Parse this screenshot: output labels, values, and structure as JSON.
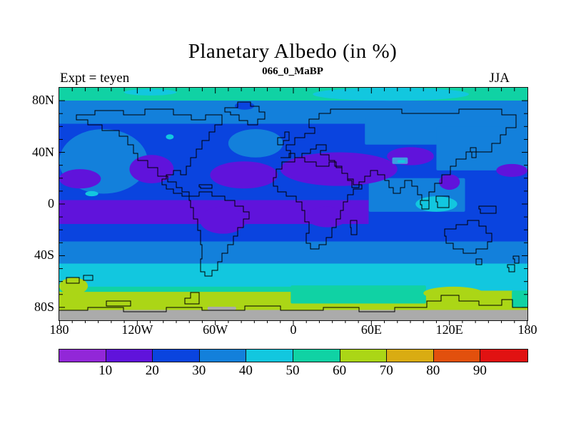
{
  "title": "Planetary Albedo (in %)",
  "subtitle": "066_0_MaBP",
  "annotations": {
    "experiment": "Expt = teyen",
    "season": "JJA"
  },
  "axes": {
    "lat_range": [
      -90,
      90
    ],
    "lon_range": [
      -180,
      180
    ],
    "minor_step_deg": 10,
    "lat_ticks": [
      {
        "label": "80N",
        "lat": 80
      },
      {
        "label": "40N",
        "lat": 40
      },
      {
        "label": "0",
        "lat": 0
      },
      {
        "label": "40S",
        "lat": -40
      },
      {
        "label": "80S",
        "lat": -80
      }
    ],
    "lon_ticks": [
      {
        "label": "180",
        "lon": -180
      },
      {
        "label": "120W",
        "lon": -120
      },
      {
        "label": "60W",
        "lon": -60
      },
      {
        "label": "0",
        "lon": 0
      },
      {
        "label": "60E",
        "lon": 60
      },
      {
        "label": "120E",
        "lon": 120
      },
      {
        "label": "180",
        "lon": 180
      }
    ]
  },
  "colorbar": {
    "boundary_labels": [
      "10",
      "20",
      "30",
      "40",
      "50",
      "60",
      "70",
      "80",
      "90"
    ],
    "segments": [
      {
        "range": "<10",
        "color": "#9227D8"
      },
      {
        "range": "10-20",
        "color": "#6013DB"
      },
      {
        "range": "20-30",
        "color": "#0A44DF"
      },
      {
        "range": "30-40",
        "color": "#1380DB"
      },
      {
        "range": "40-50",
        "color": "#12C7DF"
      },
      {
        "range": "50-60",
        "color": "#10D2A4"
      },
      {
        "range": "60-70",
        "color": "#ABD616"
      },
      {
        "range": "70-80",
        "color": "#D9AC12"
      },
      {
        "range": "80-90",
        "color": "#E2500D"
      },
      {
        "range": ">90",
        "color": "#E11212"
      }
    ]
  },
  "chart_data": {
    "type": "heatmap",
    "description": "Filled contour global map of planetary albedo in percent, 10% contour interval, lat 90N-90S, lon 180W-180E",
    "title": "Planetary Albedo (in %)",
    "subtitle": "066_0_MaBP",
    "experiment": "teyen",
    "season": "JJA",
    "units": "%",
    "contour_interval": 10,
    "levels": [
      10,
      20,
      30,
      40,
      50,
      60,
      70,
      80,
      90
    ],
    "palette": [
      "#9227D8",
      "#6013DB",
      "#0A44DF",
      "#1380DB",
      "#12C7DF",
      "#10D2A4",
      "#ABD616",
      "#D9AC12",
      "#E2500D",
      "#E11212"
    ],
    "ice_gray_color": "#ABABAB",
    "zonal_bands": [
      {
        "name": "arctic-cap",
        "lat_from": 90,
        "lat_to": 80,
        "albedo_pct": 55,
        "color": "#10D2A4"
      },
      {
        "name": "high-north",
        "lat_from": 80,
        "lat_to": 62,
        "albedo_pct": 35,
        "color": "#1380DB"
      },
      {
        "name": "north-midlat",
        "lat_from": 62,
        "lat_to": 3,
        "albedo_pct": 25,
        "color": "#0A44DF"
      },
      {
        "name": "equatorial-low",
        "lat_from": 3,
        "lat_to": -15.5,
        "lon_from": -180,
        "lon_to": 58,
        "albedo_pct": 18,
        "color": "#6013DB"
      },
      {
        "name": "equatorial-east",
        "lat_from": 3,
        "lat_to": -15.5,
        "lon_from": 58,
        "lon_to": 180,
        "albedo_pct": 25,
        "color": "#0A44DF"
      },
      {
        "name": "south-subtropic",
        "lat_from": -15.5,
        "lat_to": -29,
        "albedo_pct": 25,
        "color": "#0A44DF"
      },
      {
        "name": "south-midlat",
        "lat_from": -29,
        "lat_to": -46,
        "albedo_pct": 35,
        "color": "#1380DB"
      },
      {
        "name": "southern-ocean",
        "lat_from": -46,
        "lat_to": -67,
        "albedo_pct": 45,
        "color": "#12C7DF"
      },
      {
        "name": "subantarctic",
        "lat_from": -67,
        "lat_to": -82,
        "albedo_pct": 65,
        "color": "#ABD616"
      },
      {
        "name": "antarctica-ice",
        "lat_from": -82,
        "lat_to": -90,
        "albedo_pct": null,
        "color": "#ABABAB"
      }
    ],
    "features": [
      {
        "name": "arctic-cyan-patch-east",
        "shape": "ellipse",
        "lon_from": 15,
        "lon_to": 135,
        "lat_from": 90,
        "lat_to": 80,
        "albedo_pct": 45,
        "color": "#12C7DF"
      },
      {
        "name": "arctic-cyan-patch-west",
        "shape": "ellipse",
        "lon_from": -130,
        "lon_to": -90,
        "lat_from": 89,
        "lat_to": 84,
        "albedo_pct": 45,
        "color": "#12C7DF"
      },
      {
        "name": "northeast-pacific",
        "shape": "ellipse",
        "lon_from": -180,
        "lon_to": -112,
        "lat_from": 58,
        "lat_to": 8,
        "albedo_pct": 35,
        "color": "#1380DB"
      },
      {
        "name": "north-atlantic",
        "shape": "ellipse",
        "lon_from": -50,
        "lon_to": -8,
        "lat_from": 58,
        "lat_to": 36,
        "albedo_pct": 35,
        "color": "#1380DB"
      },
      {
        "name": "siberia",
        "shape": "rect",
        "lon_from": 55,
        "lon_to": 180,
        "lat_from": 66,
        "lat_to": 46,
        "albedo_pct": 35,
        "color": "#1380DB"
      },
      {
        "name": "northwest-pacific",
        "shape": "rect",
        "lon_from": 110,
        "lon_to": 180,
        "lat_from": 60,
        "lat_to": 26,
        "albedo_pct": 35,
        "color": "#1380DB"
      },
      {
        "name": "indian-ocean-wpac",
        "shape": "rect",
        "lon_from": 58,
        "lon_to": 132,
        "lat_from": 20,
        "lat_to": -6,
        "albedo_pct": 35,
        "color": "#1380DB"
      },
      {
        "name": "warm-pool-cyan",
        "shape": "ellipse",
        "lon_from": 94,
        "lon_to": 126,
        "lat_from": 6,
        "lat_to": -6,
        "albedo_pct": 45,
        "color": "#12C7DF"
      },
      {
        "name": "greenland-interior",
        "shape": "ellipse",
        "lon_from": -45,
        "lon_to": -30,
        "lat_from": 79,
        "lat_to": 73,
        "albedo_pct": 25,
        "color": "#0A44DF"
      },
      {
        "name": "hudson-bay-spot",
        "shape": "ellipse",
        "lon_from": -98,
        "lon_to": -92,
        "lat_from": 54,
        "lat_to": 50,
        "albedo_pct": 45,
        "color": "#12C7DF"
      },
      {
        "name": "mexico-sw-us",
        "shape": "ellipse",
        "lon_from": -126,
        "lon_to": -92,
        "lat_from": 38,
        "lat_to": 16,
        "albedo_pct": 15,
        "color": "#6013DB"
      },
      {
        "name": "central-atlantic",
        "shape": "ellipse",
        "lon_from": -64,
        "lon_to": -12,
        "lat_from": 33,
        "lat_to": 12,
        "albedo_pct": 15,
        "color": "#6013DB"
      },
      {
        "name": "sahara-arabia",
        "shape": "ellipse",
        "lon_from": -10,
        "lon_to": 80,
        "lat_from": 40,
        "lat_to": 14,
        "albedo_pct": 15,
        "color": "#6013DB"
      },
      {
        "name": "central-asia",
        "shape": "ellipse",
        "lon_from": 72,
        "lon_to": 108,
        "lat_from": 44,
        "lat_to": 30,
        "albedo_pct": 15,
        "color": "#6013DB"
      },
      {
        "name": "central-pacific-streak",
        "shape": "ellipse",
        "lon_from": -180,
        "lon_to": -148,
        "lat_from": 27,
        "lat_to": 12,
        "albedo_pct": 15,
        "color": "#6013DB"
      },
      {
        "name": "nw-pacific-subtropic",
        "shape": "ellipse",
        "lon_from": 156,
        "lon_to": 180,
        "lat_from": 31,
        "lat_to": 21,
        "albedo_pct": 15,
        "color": "#6013DB"
      },
      {
        "name": "se-asia-coast",
        "shape": "ellipse",
        "lon_from": 112,
        "lon_to": 128,
        "lat_from": 23,
        "lat_to": 11,
        "albedo_pct": 15,
        "color": "#6013DB"
      },
      {
        "name": "brazil",
        "shape": "ellipse",
        "lon_from": -72,
        "lon_to": -36,
        "lat_from": -2,
        "lat_to": -23,
        "albedo_pct": 15,
        "color": "#6013DB"
      },
      {
        "name": "central-africa",
        "shape": "ellipse",
        "lon_from": 10,
        "lon_to": 42,
        "lat_from": -2,
        "lat_to": -18,
        "albedo_pct": 15,
        "color": "#6013DB"
      },
      {
        "name": "tibet-plateau",
        "shape": "rect",
        "lon_from": 76,
        "lon_to": 88,
        "lat_from": 36,
        "lat_to": 31,
        "albedo_pct": 38,
        "color": "#3E9EE0"
      },
      {
        "name": "tibet-high",
        "shape": "rect",
        "lon_from": 80,
        "lon_to": 86,
        "lat_from": 34,
        "lat_to": 32,
        "albedo_pct": 45,
        "color": "#12C7DF"
      },
      {
        "name": "pacific-equator-spot",
        "shape": "ellipse",
        "lon_from": -160,
        "lon_to": -150,
        "lat_from": 10,
        "lat_to": 6,
        "albedo_pct": 45,
        "color": "#12C7DF"
      },
      {
        "name": "subantarctic-teal-strip",
        "shape": "rect",
        "lon_from": -180,
        "lon_to": 0,
        "lat_from": -64,
        "lat_to": -68,
        "albedo_pct": 55,
        "color": "#10D2A4"
      },
      {
        "name": "antarctic-teal-sector",
        "shape": "rect",
        "lon_from": -2,
        "lon_to": 102,
        "lat_from": -63,
        "lat_to": -77,
        "albedo_pct": 55,
        "color": "#10D2A4"
      },
      {
        "name": "sw-corner-yellowgreen",
        "shape": "ellipse",
        "lon_from": -180,
        "lon_to": -158,
        "lat_from": -57,
        "lat_to": -70,
        "albedo_pct": 65,
        "color": "#ABD616"
      },
      {
        "name": "east-antarctic-yellow",
        "shape": "ellipse",
        "lon_from": 100,
        "lon_to": 146,
        "lat_from": -64,
        "lat_to": -74,
        "albedo_pct": 65,
        "color": "#ABD616"
      },
      {
        "name": "far-se-teal",
        "shape": "rect",
        "lon_from": 168,
        "lon_to": 180,
        "lat_from": -67,
        "lat_to": -80,
        "albedo_pct": 55,
        "color": "#10D2A4"
      },
      {
        "name": "antarctic-ice-bump",
        "shape": "rect",
        "lon_from": -66,
        "lon_to": -44,
        "lat_from": -79.5,
        "lat_to": -82,
        "albedo_pct": null,
        "color": "#ABABAB"
      }
    ],
    "coastlines": [
      "M 24 45 V 38 H 50 V 32 H 90 V 38 H 120 V 30 H 160 V 38 H 185 V 45 H 205 V 38 H 228 V 52 H 218 V 62 H 210 V 74 H 200 V 86 H 192 V 98 H 184 V 110 H 178 V 122 H 170 V 116 H 160 V 122 H 150 V 128 H 144 V 136 H 150 V 142 H 160 V 148 H 172 V 152 H 182 V 146 H 172 V 140 H 164 V 132 H 152 V 124 H 138 V 112 H 124 V 102 H 110 V 92 H 104 V 80 H 96 V 68 H 84 V 60 H 60 V 52 H 40 V 45 Z",
      "M 182 152 H 196 V 146 H 214 V 152 H 232 V 158 H 246 V 166 H 258 V 174 H 266 V 184 H 258 V 196 H 250 V 208 H 244 V 220 H 236 V 232 H 228 V 244 H 222 V 256 H 214 V 264 H 204 V 258 H 198 V 240 H 200 V 220 H 198 V 200 H 194 V 184 H 188 V 168 H 184 V 158 H 182 Z",
      "M 232 28 H 250 V 20 H 268 V 26 H 280 V 34 H 288 V 44 H 278 V 52 H 264 V 46 H 252 V 38 H 240 V 34 H 232 Z",
      "M 306 70 H 316 V 62 H 322 V 74 H 314 V 80 H 306 Z",
      "M 310 98 H 324 V 88 H 318 V 80 H 330 V 70 H 344 V 64 H 358 V 56 H 350 V 44 H 364 V 36 H 380 V 30 H 480 V 36 H 560 V 30 H 620 V 38 H 640 V 56 H 626 V 66 H 618 V 78 H 606 V 90 H 570 V 100 H 556 V 110 H 548 V 122 H 536 V 134 H 526 V 146 H 518 V 158 H 508 V 150 H 502 V 138 H 494 V 130 H 484 V 140 H 478 V 148 H 468 V 140 H 462 V 130 H 456 V 122 H 446 V 116 H 436 V 124 H 428 V 132 H 420 V 140 H 410 V 130 H 404 V 120 H 396 V 110 H 386 V 102 H 378 V 94 H 366 V 88 H 374 V 80 H 360 V 86 H 352 V 92 H 340 V 98 H 330 V 92 H 322 V 98 Z",
      "M 312 104 H 330 V 98 H 344 V 104 H 360 V 110 H 378 V 104 H 388 V 112 H 396 V 120 H 404 V 128 H 412 V 136 H 424 V 142 H 412 V 150 H 404 V 160 H 398 V 172 H 394 V 184 H 388 V 196 H 382 V 210 H 374 V 220 H 364 V 226 H 352 V 218 H 346 V 204 H 350 V 188 H 344 V 172 H 340 V 160 H 332 V 152 H 318 V 146 H 306 V 138 H 300 V 126 H 304 V 114 H 312 Z",
      "M 408 186 H 417 V 206 H 409 V 196 H 408 Z",
      "M 506 158 H 518 V 170 H 508 V 164 H 506 Z",
      "M 528 152 H 546 V 168 H 530 V 160 H 528 Z",
      "M 588 166 H 612 V 176 H 590 V 170 H 588 Z",
      "M 576 84 H 584 V 98 H 578 V 90 H 576 Z",
      "M 196 136 H 214 V 141 H 198 V 139 H 196 Z",
      "M 540 198 H 556 V 192 H 572 V 186 H 588 V 194 H 598 V 204 H 606 V 216 H 600 V 226 H 584 V 232 H 566 V 226 H 552 V 218 H 542 V 208 H 540 Z",
      "M 584 240 H 592 V 248 H 584 Z",
      "M 636 236 H 644 V 246 H 638 V 240 H 636 Z",
      "M 628 248 H 638 V 258 H 630 V 252 H 628 Z",
      "M 10 266 H 28 V 274 H 10 Z",
      "M 34 263 H 47 V 270 H 34 Z",
      "M 66 299 H 100 V 306 H 66 Z",
      "M 176 303 V 295 H 184 V 287 H 196 V 303 Z",
      "M 0 312 H 40 V 308 H 90 V 314 H 150 V 308 H 200 V 312 H 260 V 306 H 310 V 312 H 370 V 308 H 420 V 314 H 470 V 308 H 515 V 299 H 535 V 291 H 560 V 299 H 588 V 305 H 620 V 297 H 635 V 308 H 656"
    ]
  }
}
